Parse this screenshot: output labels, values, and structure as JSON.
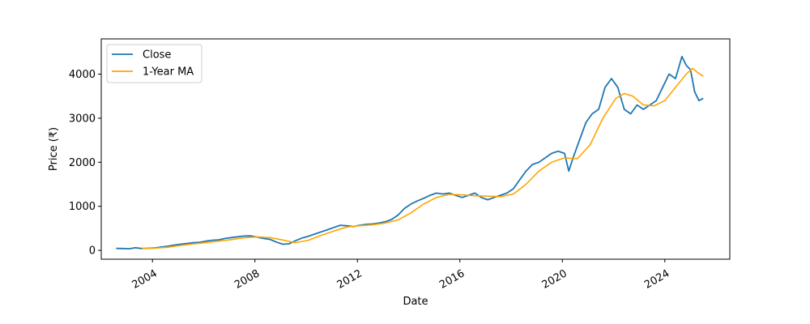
{
  "chart_data": {
    "type": "line",
    "title": "",
    "xlabel": "Date",
    "ylabel": "Price (₹)",
    "xlim": [
      "2002-01-01",
      "2026-07-15"
    ],
    "ylim": [
      -200,
      4800
    ],
    "x_ticks": [
      "2004",
      "2008",
      "2012",
      "2016",
      "2020",
      "2024"
    ],
    "y_ticks": [
      0,
      1000,
      2000,
      3000,
      4000
    ],
    "grid": false,
    "legend": "top-left",
    "series": [
      {
        "name": "Close",
        "color": "#1f77b4",
        "points": [
          [
            "2002-08-01",
            45
          ],
          [
            "2002-11-01",
            42
          ],
          [
            "2003-02-01",
            38
          ],
          [
            "2003-05-01",
            60
          ],
          [
            "2003-08-01",
            42
          ],
          [
            "2003-11-01",
            48
          ],
          [
            "2004-02-01",
            55
          ],
          [
            "2004-05-01",
            75
          ],
          [
            "2004-08-01",
            95
          ],
          [
            "2004-11-01",
            120
          ],
          [
            "2005-02-01",
            140
          ],
          [
            "2005-05-01",
            155
          ],
          [
            "2005-08-01",
            175
          ],
          [
            "2005-11-01",
            185
          ],
          [
            "2006-02-01",
            210
          ],
          [
            "2006-05-01",
            230
          ],
          [
            "2006-08-01",
            240
          ],
          [
            "2006-11-01",
            270
          ],
          [
            "2007-02-01",
            290
          ],
          [
            "2007-05-01",
            310
          ],
          [
            "2007-08-01",
            325
          ],
          [
            "2007-11-01",
            330
          ],
          [
            "2008-02-01",
            300
          ],
          [
            "2008-05-01",
            270
          ],
          [
            "2008-08-01",
            250
          ],
          [
            "2008-11-01",
            190
          ],
          [
            "2009-02-01",
            140
          ],
          [
            "2009-05-01",
            150
          ],
          [
            "2009-08-01",
            220
          ],
          [
            "2009-11-01",
            280
          ],
          [
            "2010-02-01",
            320
          ],
          [
            "2010-05-01",
            370
          ],
          [
            "2010-08-01",
            420
          ],
          [
            "2010-11-01",
            470
          ],
          [
            "2011-02-01",
            520
          ],
          [
            "2011-05-01",
            570
          ],
          [
            "2011-08-01",
            560
          ],
          [
            "2011-11-01",
            540
          ],
          [
            "2012-02-01",
            570
          ],
          [
            "2012-05-01",
            590
          ],
          [
            "2012-08-01",
            600
          ],
          [
            "2012-11-01",
            620
          ],
          [
            "2013-02-01",
            650
          ],
          [
            "2013-05-01",
            700
          ],
          [
            "2013-08-01",
            800
          ],
          [
            "2013-11-01",
            950
          ],
          [
            "2014-02-01",
            1050
          ],
          [
            "2014-05-01",
            1120
          ],
          [
            "2014-08-01",
            1180
          ],
          [
            "2014-11-01",
            1250
          ],
          [
            "2015-02-01",
            1300
          ],
          [
            "2015-05-01",
            1280
          ],
          [
            "2015-08-01",
            1300
          ],
          [
            "2015-11-01",
            1250
          ],
          [
            "2016-02-01",
            1200
          ],
          [
            "2016-05-01",
            1250
          ],
          [
            "2016-08-01",
            1300
          ],
          [
            "2016-11-01",
            1200
          ],
          [
            "2017-02-01",
            1150
          ],
          [
            "2017-05-01",
            1200
          ],
          [
            "2017-08-01",
            1250
          ],
          [
            "2017-11-01",
            1300
          ],
          [
            "2018-02-01",
            1400
          ],
          [
            "2018-05-01",
            1600
          ],
          [
            "2018-08-01",
            1800
          ],
          [
            "2018-11-01",
            1950
          ],
          [
            "2019-02-01",
            2000
          ],
          [
            "2019-05-01",
            2100
          ],
          [
            "2019-08-01",
            2200
          ],
          [
            "2019-11-01",
            2250
          ],
          [
            "2020-02-01",
            2200
          ],
          [
            "2020-04-01",
            1800
          ],
          [
            "2020-06-01",
            2100
          ],
          [
            "2020-09-01",
            2500
          ],
          [
            "2020-12-01",
            2900
          ],
          [
            "2021-03-01",
            3100
          ],
          [
            "2021-06-01",
            3200
          ],
          [
            "2021-09-01",
            3700
          ],
          [
            "2021-12-01",
            3900
          ],
          [
            "2022-03-01",
            3700
          ],
          [
            "2022-06-01",
            3200
          ],
          [
            "2022-09-01",
            3100
          ],
          [
            "2022-12-01",
            3300
          ],
          [
            "2023-03-01",
            3200
          ],
          [
            "2023-06-01",
            3300
          ],
          [
            "2023-09-01",
            3400
          ],
          [
            "2023-12-01",
            3700
          ],
          [
            "2024-03-01",
            4000
          ],
          [
            "2024-06-01",
            3900
          ],
          [
            "2024-09-01",
            4400
          ],
          [
            "2024-11-01",
            4200
          ],
          [
            "2025-01-01",
            4100
          ],
          [
            "2025-03-01",
            3600
          ],
          [
            "2025-05-01",
            3400
          ],
          [
            "2025-07-01",
            3450
          ]
        ]
      },
      {
        "name": "1-Year MA",
        "color": "#ffa500",
        "points": [
          [
            "2003-08-01",
            45
          ],
          [
            "2004-02-01",
            48
          ],
          [
            "2004-08-01",
            70
          ],
          [
            "2005-02-01",
            110
          ],
          [
            "2005-08-01",
            145
          ],
          [
            "2006-02-01",
            175
          ],
          [
            "2006-08-01",
            210
          ],
          [
            "2007-02-01",
            245
          ],
          [
            "2007-08-01",
            285
          ],
          [
            "2008-02-01",
            305
          ],
          [
            "2008-08-01",
            290
          ],
          [
            "2009-02-01",
            235
          ],
          [
            "2009-08-01",
            175
          ],
          [
            "2010-02-01",
            230
          ],
          [
            "2010-08-01",
            340
          ],
          [
            "2011-02-01",
            440
          ],
          [
            "2011-08-01",
            530
          ],
          [
            "2012-02-01",
            560
          ],
          [
            "2012-08-01",
            580
          ],
          [
            "2013-02-01",
            620
          ],
          [
            "2013-08-01",
            690
          ],
          [
            "2014-02-01",
            850
          ],
          [
            "2014-08-01",
            1050
          ],
          [
            "2015-02-01",
            1200
          ],
          [
            "2015-08-01",
            1270
          ],
          [
            "2016-02-01",
            1260
          ],
          [
            "2016-08-01",
            1240
          ],
          [
            "2017-02-01",
            1230
          ],
          [
            "2017-08-01",
            1220
          ],
          [
            "2018-02-01",
            1280
          ],
          [
            "2018-08-01",
            1500
          ],
          [
            "2019-02-01",
            1800
          ],
          [
            "2019-08-01",
            2000
          ],
          [
            "2020-02-01",
            2100
          ],
          [
            "2020-08-01",
            2080
          ],
          [
            "2021-02-01",
            2400
          ],
          [
            "2021-08-01",
            3000
          ],
          [
            "2022-02-01",
            3450
          ],
          [
            "2022-06-01",
            3560
          ],
          [
            "2022-10-01",
            3500
          ],
          [
            "2023-03-01",
            3300
          ],
          [
            "2023-08-01",
            3280
          ],
          [
            "2024-01-01",
            3400
          ],
          [
            "2024-06-01",
            3700
          ],
          [
            "2024-11-01",
            4000
          ],
          [
            "2025-02-01",
            4130
          ],
          [
            "2025-04-01",
            4050
          ],
          [
            "2025-07-01",
            3950
          ]
        ]
      }
    ]
  }
}
